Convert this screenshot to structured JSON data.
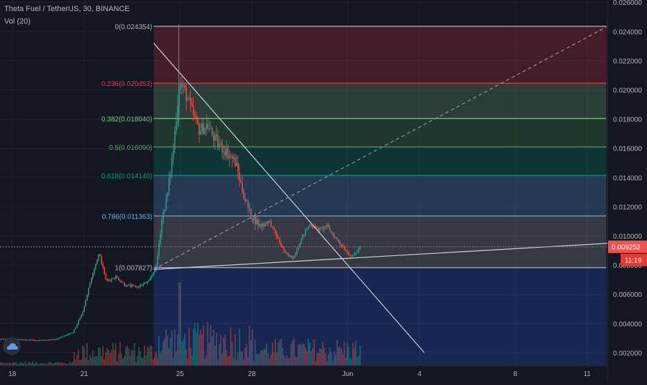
{
  "header": {
    "symbol_line": "Theta Fuel / TetherUS, 30, BINANCE",
    "volume_label": "Vol (20)"
  },
  "colors": {
    "background": "#131722",
    "grid": "#1e222d",
    "axis_text": "#b2b5be",
    "candle_up": "#26a69a",
    "candle_down": "#ef5350",
    "price_tag": "#ef5350",
    "trendline": "#d1d4dc"
  },
  "chart_data": {
    "type": "candlestick",
    "title": "Theta Fuel / TetherUS, 30, BINANCE",
    "xlabel": "",
    "ylabel": "",
    "ylim": [
      0,
      0.027
    ],
    "grid": true,
    "x_ticks": [
      {
        "label": "18",
        "day": 18
      },
      {
        "label": "21",
        "day": 21
      },
      {
        "label": "25",
        "day": 25
      },
      {
        "label": "28",
        "day": 28
      },
      {
        "label": "Jun",
        "day": 32
      },
      {
        "label": "4",
        "day": 35
      },
      {
        "label": "8",
        "day": 39
      },
      {
        "label": "11",
        "day": 42
      }
    ],
    "y_ticks": [
      {
        "label": "0.026000",
        "value": 0.026
      },
      {
        "label": "0.024000",
        "value": 0.024
      },
      {
        "label": "0.022000",
        "value": 0.022
      },
      {
        "label": "0.020000",
        "value": 0.02
      },
      {
        "label": "0.018000",
        "value": 0.018
      },
      {
        "label": "0.016000",
        "value": 0.016
      },
      {
        "label": "0.014000",
        "value": 0.014
      },
      {
        "label": "0.012000",
        "value": 0.012
      },
      {
        "label": "0.010000",
        "value": 0.01
      },
      {
        "label": "0.008000",
        "value": 0.008
      },
      {
        "label": "0.006000",
        "value": 0.006
      },
      {
        "label": "0.004000",
        "value": 0.004
      },
      {
        "label": "0.002000",
        "value": 0.002
      }
    ],
    "last_price": {
      "label": "0.009252",
      "value": 0.009252,
      "countdown": "11:19"
    },
    "fibonacci": {
      "start_day": 23.9,
      "end_day": 42.8,
      "levels": [
        {
          "label": "0(0.024354)",
          "value": 0.024354,
          "color": "#b2b5be"
        },
        {
          "label": "0.236(0.020453)",
          "value": 0.020453,
          "color": "#f23645"
        },
        {
          "label": "0.382(0.018040)",
          "value": 0.01804,
          "color": "#81c784"
        },
        {
          "label": "0.5(0.016090)",
          "value": 0.01609,
          "color": "#4caf50"
        },
        {
          "label": "0.618(0.014140)",
          "value": 0.01414,
          "color": "#089981"
        },
        {
          "label": "0.786(0.011363)",
          "value": 0.011363,
          "color": "#64b5f6"
        },
        {
          "label": "1(0.007827)",
          "value": 0.007827,
          "color": "#b2b5be"
        }
      ],
      "extension_bottom": 0
    },
    "trendlines": [
      {
        "from": {
          "day": 23.9,
          "value": 0.0232
        },
        "to": {
          "day": 35.2,
          "value": 0.002
        },
        "style": "solid"
      },
      {
        "from": {
          "day": 23.9,
          "value": 0.0077
        },
        "to": {
          "day": 43.0,
          "value": 0.0095
        },
        "style": "solid"
      },
      {
        "from": {
          "day": 23.9,
          "value": 0.0077
        },
        "to": {
          "day": 42.8,
          "value": 0.0243
        },
        "style": "dashed"
      }
    ],
    "price_path": [
      {
        "day": 16.0,
        "price": 0.003
      },
      {
        "day": 17.0,
        "price": 0.00295
      },
      {
        "day": 18.0,
        "price": 0.0029
      },
      {
        "day": 19.0,
        "price": 0.00285
      },
      {
        "day": 19.8,
        "price": 0.0029
      },
      {
        "day": 20.5,
        "price": 0.0034
      },
      {
        "day": 20.9,
        "price": 0.0047
      },
      {
        "day": 21.3,
        "price": 0.0073
      },
      {
        "day": 21.6,
        "price": 0.0088
      },
      {
        "day": 21.9,
        "price": 0.0069
      },
      {
        "day": 22.3,
        "price": 0.0072
      },
      {
        "day": 22.7,
        "price": 0.0066
      },
      {
        "day": 23.2,
        "price": 0.0065
      },
      {
        "day": 23.7,
        "price": 0.0069
      },
      {
        "day": 24.0,
        "price": 0.008
      },
      {
        "day": 24.2,
        "price": 0.011
      },
      {
        "day": 24.45,
        "price": 0.0128
      },
      {
        "day": 24.7,
        "price": 0.016
      },
      {
        "day": 24.95,
        "price": 0.0205
      },
      {
        "day": 25.2,
        "price": 0.0198
      },
      {
        "day": 25.5,
        "price": 0.0184
      },
      {
        "day": 25.8,
        "price": 0.0172
      },
      {
        "day": 26.1,
        "price": 0.0176
      },
      {
        "day": 26.5,
        "price": 0.0164
      },
      {
        "day": 26.9,
        "price": 0.0158
      },
      {
        "day": 27.3,
        "price": 0.015
      },
      {
        "day": 27.6,
        "price": 0.013
      },
      {
        "day": 27.9,
        "price": 0.0115
      },
      {
        "day": 28.3,
        "price": 0.0107
      },
      {
        "day": 28.7,
        "price": 0.011
      },
      {
        "day": 29.0,
        "price": 0.01
      },
      {
        "day": 29.4,
        "price": 0.0087
      },
      {
        "day": 29.7,
        "price": 0.0085
      },
      {
        "day": 30.1,
        "price": 0.01
      },
      {
        "day": 30.4,
        "price": 0.0108
      },
      {
        "day": 30.8,
        "price": 0.0104
      },
      {
        "day": 31.1,
        "price": 0.0107
      },
      {
        "day": 31.4,
        "price": 0.01
      },
      {
        "day": 31.7,
        "price": 0.0094
      },
      {
        "day": 32.0,
        "price": 0.0088
      },
      {
        "day": 32.2,
        "price": 0.0086
      },
      {
        "day": 32.5,
        "price": 0.00925
      }
    ],
    "volume_spike_day": 24.95
  }
}
